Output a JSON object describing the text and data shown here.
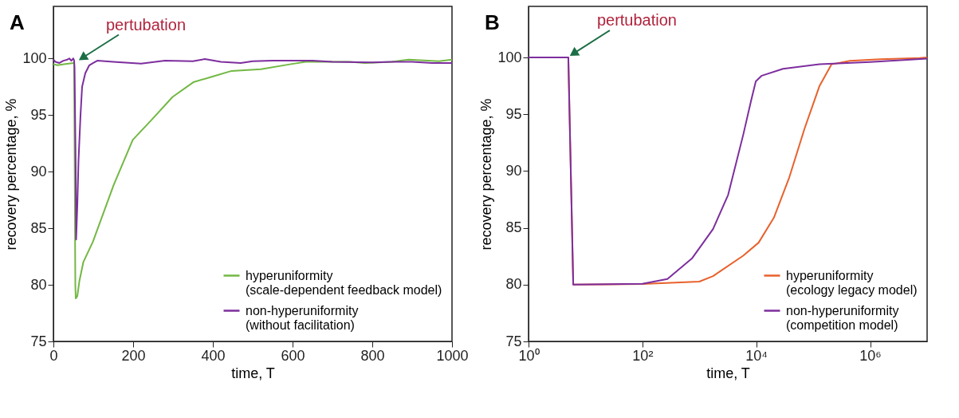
{
  "chart_data": [
    {
      "type": "line",
      "title": "A",
      "xlabel": "time, T",
      "ylabel": "recovery percentage, %",
      "xlim": [
        0,
        1000
      ],
      "xticks": [
        0,
        200,
        400,
        600,
        800,
        1000
      ],
      "ylim": [
        75,
        104.6
      ],
      "yticks": [
        75,
        80,
        85,
        90,
        95,
        100
      ],
      "legend": "bottom right",
      "grid": false,
      "marker": "none",
      "line_style": "solid",
      "annotations": [
        {
          "text": "pertubation",
          "x": 60,
          "y": 99.7
        }
      ],
      "series": [
        {
          "name": "hyperuniformity\n(scale-dependent feedback model)",
          "color": "#72b843",
          "x": [
            0,
            10,
            30,
            50,
            52,
            55,
            56,
            60,
            65,
            75,
            99,
            151,
            199,
            247,
            299,
            351,
            399,
            447,
            521,
            596,
            633,
            744,
            781,
            850,
            892,
            967,
            1000
          ],
          "values": [
            99.5,
            99.4,
            99.5,
            99.6,
            99.6,
            80,
            78.8,
            79,
            80.3,
            82,
            83.8,
            88.8,
            92.8,
            94.6,
            96.6,
            97.9,
            98.4,
            98.9,
            99.05,
            99.5,
            99.7,
            99.7,
            99.6,
            99.7,
            99.9,
            99.75,
            99.9
          ]
        },
        {
          "name": "non-hyperuniformity\n(without facilitation)",
          "color": "#7d2e9e",
          "x": [
            0,
            5,
            15,
            25,
            35,
            40,
            45,
            50,
            52,
            53,
            56,
            57,
            60,
            63,
            68,
            72,
            80,
            90,
            100,
            110,
            150,
            220,
            280,
            350,
            380,
            420,
            470,
            500,
            550,
            650,
            700,
            800,
            850,
            900,
            950,
            1000
          ],
          "values": [
            99.9,
            99.7,
            99.6,
            99.8,
            99.9,
            100,
            99.8,
            100,
            99.8,
            99.2,
            90,
            84,
            87,
            91,
            95,
            97.5,
            98.7,
            99.4,
            99.6,
            99.8,
            99.7,
            99.55,
            99.8,
            99.75,
            99.95,
            99.7,
            99.6,
            99.75,
            99.8,
            99.8,
            99.7,
            99.65,
            99.7,
            99.7,
            99.6,
            99.6
          ]
        }
      ]
    },
    {
      "type": "line",
      "title": "B",
      "xlabel": "time, T",
      "ylabel": "recovery percentage, %",
      "log": "x",
      "xlim": [
        1,
        10000000
      ],
      "xticks": [
        {
          "value": 1,
          "label": "10⁰"
        },
        {
          "value": 100,
          "label": "10²"
        },
        {
          "value": 10000,
          "label": "10⁴"
        },
        {
          "value": 1000000,
          "label": "10⁶"
        }
      ],
      "ylim": [
        75,
        104.5
      ],
      "yticks": [
        75,
        80,
        85,
        90,
        95,
        100
      ],
      "legend": "bottom right",
      "grid": false,
      "marker": "none",
      "line_style": "solid",
      "annotations": [
        {
          "text": "pertubation",
          "x": 5,
          "y": 100
        }
      ],
      "series": [
        {
          "name": "hyperuniformity\n(ecology legacy model)",
          "color": "#e8612c",
          "x": [
            1,
            5,
            6.1,
            100,
            1000,
            1740,
            5900,
            11000,
            20400,
            38000,
            70000,
            129000,
            210000,
            440000,
            1500000,
            7400000,
            10000000
          ],
          "values": [
            100,
            100,
            80,
            80.05,
            80.27,
            80.75,
            82.55,
            83.7,
            85.9,
            89.45,
            93.7,
            97.5,
            99.4,
            99.7,
            99.85,
            99.95,
            100
          ]
        },
        {
          "name": "non-hyperuniformity\n(competition model)",
          "color": "#7d2e9e",
          "x": [
            1,
            5,
            6.1,
            100,
            275,
            740,
            1740,
            3200,
            5900,
            8100,
            9800,
            12500,
            29500,
            129000,
            1000000,
            10000000
          ],
          "values": [
            100,
            100,
            80,
            80.08,
            80.5,
            82.3,
            84.9,
            87.9,
            93.2,
            96.2,
            97.9,
            98.4,
            99,
            99.4,
            99.6,
            99.9
          ]
        }
      ]
    }
  ]
}
